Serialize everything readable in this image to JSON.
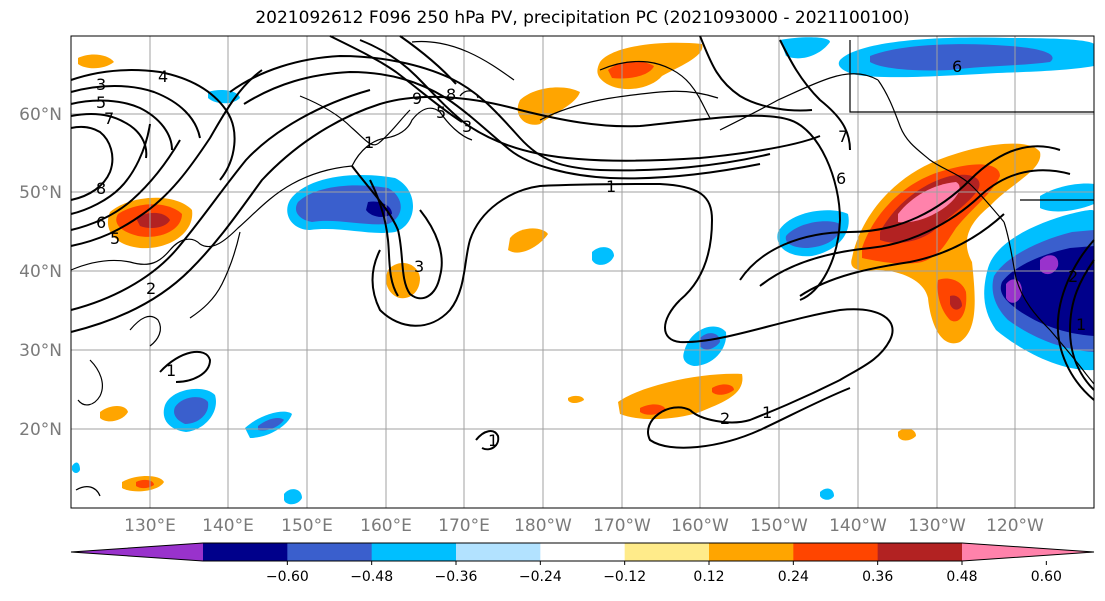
{
  "title": "2021092612 F096 250 hPa PV, precipitation PC (2021093000 - 2021100100)",
  "lat_labels": [
    "60°N",
    "50°N",
    "40°N",
    "30°N",
    "20°N"
  ],
  "lon_labels": [
    "130°E",
    "140°E",
    "150°E",
    "160°E",
    "170°E",
    "180°W",
    "170°W",
    "160°W",
    "150°W",
    "140°W",
    "130°W",
    "120°W"
  ],
  "colorbar": {
    "colors": [
      "#9932cc",
      "#00008b",
      "#3a5fcd",
      "#00bfff",
      "#b2e2ff",
      "#ffffff",
      "#ffeb8a",
      "#ffa500",
      "#ff4500",
      "#b22222",
      "#ff82ab"
    ],
    "ticks": [
      "−0.60",
      "−0.48",
      "−0.36",
      "−0.24",
      "−0.12",
      "0.12",
      "0.24",
      "0.36",
      "0.48",
      "0.60"
    ]
  },
  "contour_labels": [
    "3",
    "4",
    "5",
    "7",
    "8",
    "6",
    "5",
    "1",
    "9",
    "8",
    "5",
    "3",
    "1",
    "2",
    "3",
    "1",
    "1",
    "7",
    "6",
    "2",
    "1",
    "6",
    "2",
    "1"
  ]
}
